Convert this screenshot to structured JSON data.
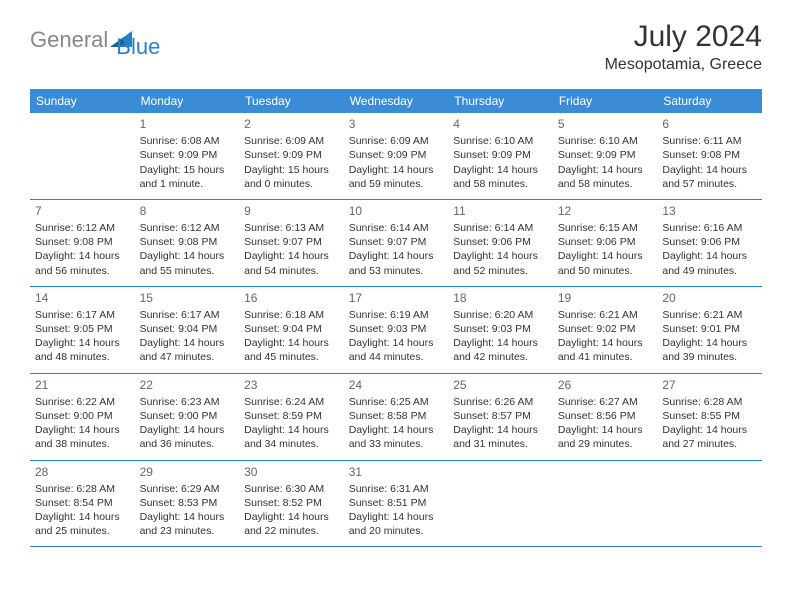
{
  "logo": {
    "general": "General",
    "blue": "Blue"
  },
  "title": "July 2024",
  "location": "Mesopotamia, Greece",
  "header_color": "#3b8cd4",
  "border_color": "#2a7fc7",
  "day_headers": [
    "Sunday",
    "Monday",
    "Tuesday",
    "Wednesday",
    "Thursday",
    "Friday",
    "Saturday"
  ],
  "weeks": [
    [
      null,
      {
        "day": "1",
        "sunrise": "Sunrise: 6:08 AM",
        "sunset": "Sunset: 9:09 PM",
        "daylight": "Daylight: 15 hours and 1 minute."
      },
      {
        "day": "2",
        "sunrise": "Sunrise: 6:09 AM",
        "sunset": "Sunset: 9:09 PM",
        "daylight": "Daylight: 15 hours and 0 minutes."
      },
      {
        "day": "3",
        "sunrise": "Sunrise: 6:09 AM",
        "sunset": "Sunset: 9:09 PM",
        "daylight": "Daylight: 14 hours and 59 minutes."
      },
      {
        "day": "4",
        "sunrise": "Sunrise: 6:10 AM",
        "sunset": "Sunset: 9:09 PM",
        "daylight": "Daylight: 14 hours and 58 minutes."
      },
      {
        "day": "5",
        "sunrise": "Sunrise: 6:10 AM",
        "sunset": "Sunset: 9:09 PM",
        "daylight": "Daylight: 14 hours and 58 minutes."
      },
      {
        "day": "6",
        "sunrise": "Sunrise: 6:11 AM",
        "sunset": "Sunset: 9:08 PM",
        "daylight": "Daylight: 14 hours and 57 minutes."
      }
    ],
    [
      {
        "day": "7",
        "sunrise": "Sunrise: 6:12 AM",
        "sunset": "Sunset: 9:08 PM",
        "daylight": "Daylight: 14 hours and 56 minutes."
      },
      {
        "day": "8",
        "sunrise": "Sunrise: 6:12 AM",
        "sunset": "Sunset: 9:08 PM",
        "daylight": "Daylight: 14 hours and 55 minutes."
      },
      {
        "day": "9",
        "sunrise": "Sunrise: 6:13 AM",
        "sunset": "Sunset: 9:07 PM",
        "daylight": "Daylight: 14 hours and 54 minutes."
      },
      {
        "day": "10",
        "sunrise": "Sunrise: 6:14 AM",
        "sunset": "Sunset: 9:07 PM",
        "daylight": "Daylight: 14 hours and 53 minutes."
      },
      {
        "day": "11",
        "sunrise": "Sunrise: 6:14 AM",
        "sunset": "Sunset: 9:06 PM",
        "daylight": "Daylight: 14 hours and 52 minutes."
      },
      {
        "day": "12",
        "sunrise": "Sunrise: 6:15 AM",
        "sunset": "Sunset: 9:06 PM",
        "daylight": "Daylight: 14 hours and 50 minutes."
      },
      {
        "day": "13",
        "sunrise": "Sunrise: 6:16 AM",
        "sunset": "Sunset: 9:06 PM",
        "daylight": "Daylight: 14 hours and 49 minutes."
      }
    ],
    [
      {
        "day": "14",
        "sunrise": "Sunrise: 6:17 AM",
        "sunset": "Sunset: 9:05 PM",
        "daylight": "Daylight: 14 hours and 48 minutes."
      },
      {
        "day": "15",
        "sunrise": "Sunrise: 6:17 AM",
        "sunset": "Sunset: 9:04 PM",
        "daylight": "Daylight: 14 hours and 47 minutes."
      },
      {
        "day": "16",
        "sunrise": "Sunrise: 6:18 AM",
        "sunset": "Sunset: 9:04 PM",
        "daylight": "Daylight: 14 hours and 45 minutes."
      },
      {
        "day": "17",
        "sunrise": "Sunrise: 6:19 AM",
        "sunset": "Sunset: 9:03 PM",
        "daylight": "Daylight: 14 hours and 44 minutes."
      },
      {
        "day": "18",
        "sunrise": "Sunrise: 6:20 AM",
        "sunset": "Sunset: 9:03 PM",
        "daylight": "Daylight: 14 hours and 42 minutes."
      },
      {
        "day": "19",
        "sunrise": "Sunrise: 6:21 AM",
        "sunset": "Sunset: 9:02 PM",
        "daylight": "Daylight: 14 hours and 41 minutes."
      },
      {
        "day": "20",
        "sunrise": "Sunrise: 6:21 AM",
        "sunset": "Sunset: 9:01 PM",
        "daylight": "Daylight: 14 hours and 39 minutes."
      }
    ],
    [
      {
        "day": "21",
        "sunrise": "Sunrise: 6:22 AM",
        "sunset": "Sunset: 9:00 PM",
        "daylight": "Daylight: 14 hours and 38 minutes."
      },
      {
        "day": "22",
        "sunrise": "Sunrise: 6:23 AM",
        "sunset": "Sunset: 9:00 PM",
        "daylight": "Daylight: 14 hours and 36 minutes."
      },
      {
        "day": "23",
        "sunrise": "Sunrise: 6:24 AM",
        "sunset": "Sunset: 8:59 PM",
        "daylight": "Daylight: 14 hours and 34 minutes."
      },
      {
        "day": "24",
        "sunrise": "Sunrise: 6:25 AM",
        "sunset": "Sunset: 8:58 PM",
        "daylight": "Daylight: 14 hours and 33 minutes."
      },
      {
        "day": "25",
        "sunrise": "Sunrise: 6:26 AM",
        "sunset": "Sunset: 8:57 PM",
        "daylight": "Daylight: 14 hours and 31 minutes."
      },
      {
        "day": "26",
        "sunrise": "Sunrise: 6:27 AM",
        "sunset": "Sunset: 8:56 PM",
        "daylight": "Daylight: 14 hours and 29 minutes."
      },
      {
        "day": "27",
        "sunrise": "Sunrise: 6:28 AM",
        "sunset": "Sunset: 8:55 PM",
        "daylight": "Daylight: 14 hours and 27 minutes."
      }
    ],
    [
      {
        "day": "28",
        "sunrise": "Sunrise: 6:28 AM",
        "sunset": "Sunset: 8:54 PM",
        "daylight": "Daylight: 14 hours and 25 minutes."
      },
      {
        "day": "29",
        "sunrise": "Sunrise: 6:29 AM",
        "sunset": "Sunset: 8:53 PM",
        "daylight": "Daylight: 14 hours and 23 minutes."
      },
      {
        "day": "30",
        "sunrise": "Sunrise: 6:30 AM",
        "sunset": "Sunset: 8:52 PM",
        "daylight": "Daylight: 14 hours and 22 minutes."
      },
      {
        "day": "31",
        "sunrise": "Sunrise: 6:31 AM",
        "sunset": "Sunset: 8:51 PM",
        "daylight": "Daylight: 14 hours and 20 minutes."
      },
      null,
      null,
      null
    ]
  ]
}
